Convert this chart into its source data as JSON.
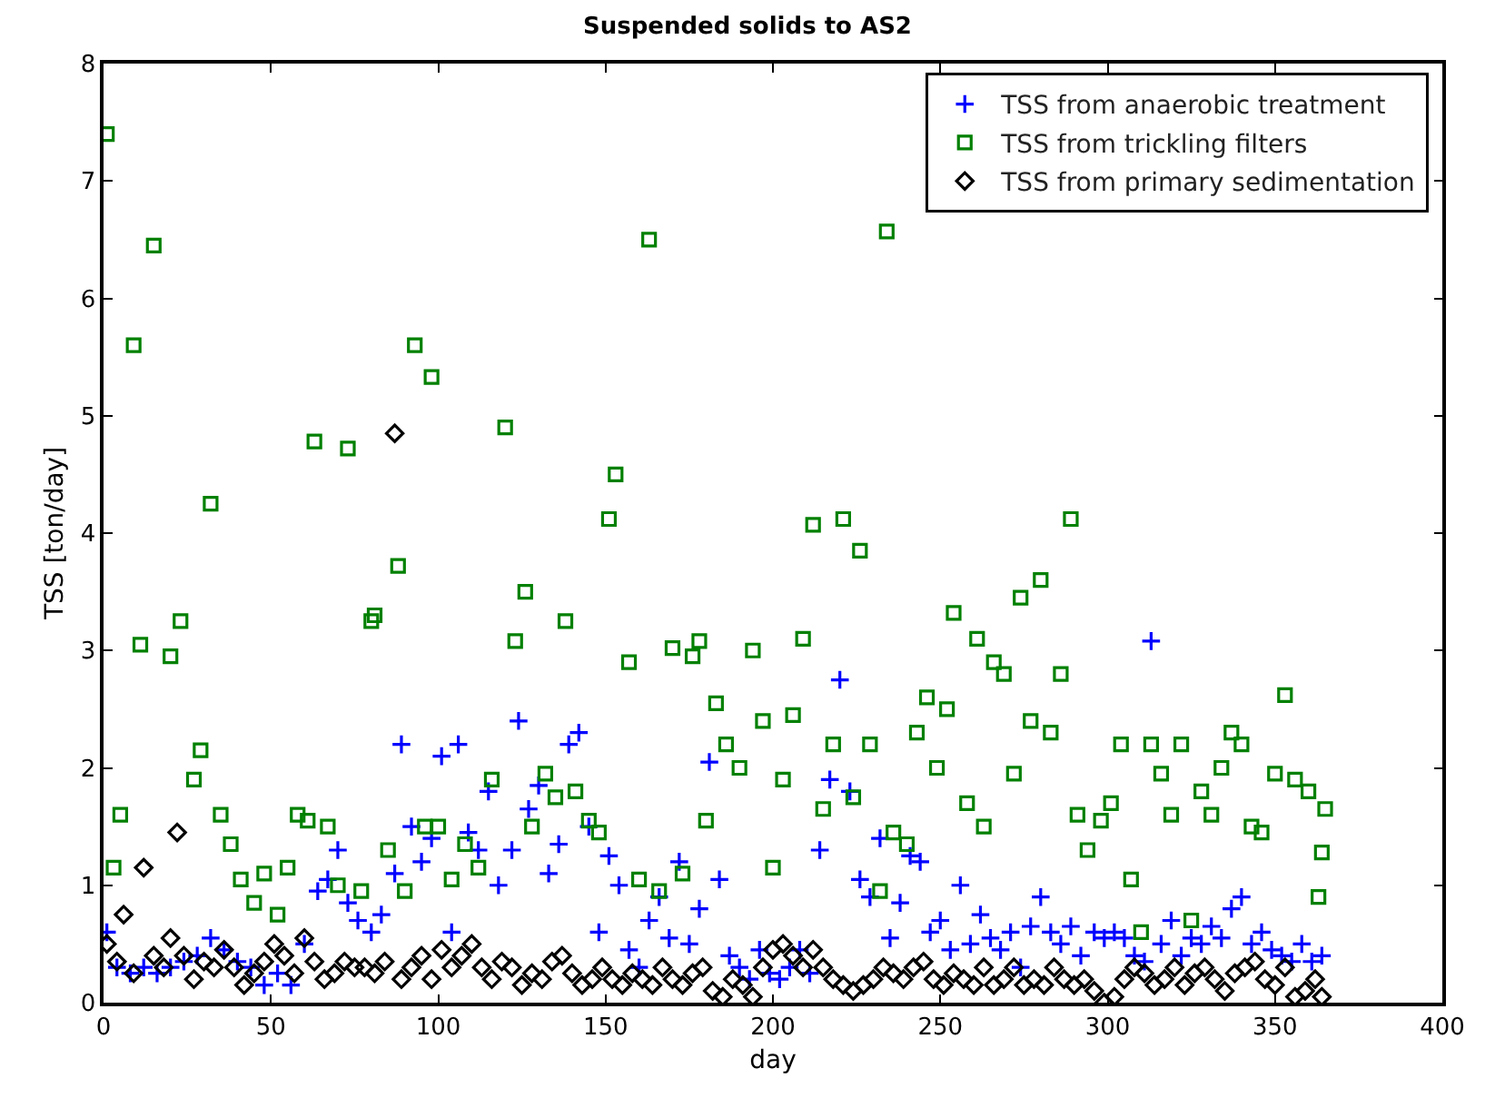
{
  "chart_data": {
    "type": "scatter",
    "title": "Suspended solids to AS2",
    "xlabel": "day",
    "ylabel": "TSS [ton/day]",
    "xlim": [
      0,
      400
    ],
    "xticks": [
      0,
      50,
      100,
      150,
      200,
      250,
      300,
      350,
      400
    ],
    "ylim": [
      0,
      8
    ],
    "yticks": [
      0,
      1,
      2,
      3,
      4,
      5,
      6,
      7,
      8
    ],
    "legend": "top right",
    "series": [
      {
        "name": "TSS from anaerobic treatment",
        "color": "#0000ff",
        "marker": "cross",
        "x": [
          1,
          4,
          8,
          12,
          16,
          20,
          24,
          28,
          32,
          36,
          40,
          44,
          48,
          52,
          56,
          60,
          64,
          67,
          70,
          73,
          76,
          80,
          83,
          87,
          89,
          92,
          95,
          98,
          101,
          104,
          106,
          109,
          112,
          115,
          118,
          122,
          124,
          127,
          130,
          133,
          136,
          139,
          142,
          145,
          148,
          151,
          154,
          157,
          160,
          163,
          166,
          169,
          172,
          175,
          178,
          181,
          184,
          187,
          190,
          193,
          196,
          199,
          202,
          205,
          208,
          211,
          214,
          217,
          220,
          223,
          226,
          229,
          232,
          235,
          238,
          241,
          244,
          247,
          250,
          253,
          256,
          259,
          262,
          265,
          268,
          271,
          274,
          277,
          280,
          283,
          286,
          289,
          292,
          296,
          299,
          302,
          305,
          308,
          311,
          313,
          316,
          319,
          322,
          325,
          328,
          331,
          334,
          337,
          340,
          343,
          346,
          349,
          352,
          355,
          358,
          361,
          364
        ],
        "values": [
          0.6,
          0.3,
          0.25,
          0.3,
          0.25,
          0.3,
          0.35,
          0.4,
          0.55,
          0.45,
          0.35,
          0.3,
          0.15,
          0.25,
          0.15,
          0.5,
          0.95,
          1.05,
          1.3,
          0.85,
          0.7,
          0.6,
          0.75,
          1.1,
          2.2,
          1.5,
          1.2,
          1.4,
          2.1,
          0.6,
          2.2,
          1.45,
          1.3,
          1.8,
          1.0,
          1.3,
          2.4,
          1.65,
          1.85,
          1.1,
          1.35,
          2.2,
          2.3,
          1.5,
          0.6,
          1.25,
          1.0,
          0.45,
          0.3,
          0.7,
          0.9,
          0.55,
          1.2,
          0.5,
          0.8,
          2.05,
          1.05,
          0.4,
          0.3,
          0.2,
          0.45,
          0.25,
          0.2,
          0.3,
          0.45,
          0.25,
          1.3,
          1.9,
          2.75,
          1.8,
          1.05,
          0.9,
          1.4,
          0.55,
          0.85,
          1.25,
          1.2,
          0.6,
          0.7,
          0.45,
          1.0,
          0.5,
          0.75,
          0.55,
          0.45,
          0.6,
          0.3,
          0.65,
          0.9,
          0.6,
          0.5,
          0.65,
          0.4,
          0.6,
          0.55,
          0.6,
          0.55,
          0.4,
          0.35,
          3.08,
          0.5,
          0.7,
          0.4,
          0.55,
          0.5,
          0.65,
          0.55,
          0.8,
          0.9,
          0.5,
          0.6,
          0.45,
          0.4,
          0.35,
          0.5,
          0.35,
          0.4
        ]
      },
      {
        "name": "TSS from trickling filters",
        "color": "#008000",
        "marker": "square",
        "x": [
          1,
          3,
          5,
          9,
          11,
          15,
          20,
          23,
          27,
          29,
          32,
          35,
          38,
          41,
          45,
          48,
          52,
          55,
          58,
          61,
          63,
          67,
          70,
          73,
          77,
          80,
          81,
          85,
          88,
          90,
          93,
          96,
          98,
          100,
          104,
          108,
          112,
          116,
          120,
          123,
          126,
          128,
          132,
          135,
          138,
          141,
          145,
          148,
          151,
          153,
          157,
          160,
          163,
          166,
          170,
          173,
          176,
          178,
          180,
          183,
          186,
          190,
          194,
          197,
          200,
          203,
          206,
          209,
          212,
          215,
          218,
          221,
          224,
          226,
          229,
          232,
          234,
          236,
          240,
          243,
          246,
          249,
          252,
          254,
          258,
          261,
          263,
          266,
          269,
          272,
          274,
          277,
          280,
          283,
          286,
          289,
          291,
          294,
          298,
          301,
          304,
          307,
          310,
          313,
          316,
          319,
          322,
          325,
          328,
          331,
          334,
          337,
          340,
          343,
          346,
          350,
          353,
          356,
          360,
          363,
          364,
          365
        ],
        "values": [
          7.4,
          1.15,
          1.6,
          5.6,
          3.05,
          6.45,
          2.95,
          3.25,
          1.9,
          2.15,
          4.25,
          1.6,
          1.35,
          1.05,
          0.85,
          1.1,
          0.75,
          1.15,
          1.6,
          1.55,
          4.78,
          1.5,
          1.0,
          4.72,
          0.95,
          3.25,
          3.3,
          1.3,
          3.72,
          0.95,
          5.6,
          1.5,
          5.33,
          1.5,
          1.05,
          1.35,
          1.15,
          1.9,
          4.9,
          3.08,
          3.5,
          1.5,
          1.95,
          1.75,
          3.25,
          1.8,
          1.55,
          1.45,
          4.12,
          4.5,
          2.9,
          1.05,
          6.5,
          0.95,
          3.02,
          1.1,
          2.95,
          3.08,
          1.55,
          2.55,
          2.2,
          2.0,
          3.0,
          2.4,
          1.15,
          1.9,
          2.45,
          3.1,
          4.07,
          1.65,
          2.2,
          4.12,
          1.75,
          3.85,
          2.2,
          0.95,
          6.57,
          1.45,
          1.35,
          2.3,
          2.6,
          2.0,
          2.5,
          3.32,
          1.7,
          3.1,
          1.5,
          2.9,
          2.8,
          1.95,
          3.45,
          2.4,
          3.6,
          2.3,
          2.8,
          4.12,
          1.6,
          1.3,
          1.55,
          1.7,
          2.2,
          1.05,
          0.6,
          2.2,
          1.95,
          1.6,
          2.2,
          0.7,
          1.8,
          1.6,
          2.0,
          2.3,
          2.2,
          1.5,
          1.45,
          1.95,
          2.62,
          1.9,
          1.8,
          0.9,
          1.28,
          1.65
        ]
      },
      {
        "name": "TSS from primary sedimentation",
        "color": "#000000",
        "marker": "diamond",
        "x": [
          1,
          4,
          6,
          9,
          12,
          15,
          18,
          20,
          22,
          24,
          27,
          30,
          33,
          36,
          39,
          42,
          45,
          48,
          51,
          54,
          57,
          60,
          63,
          66,
          69,
          72,
          75,
          78,
          81,
          84,
          87,
          89,
          92,
          95,
          98,
          101,
          104,
          107,
          110,
          113,
          116,
          119,
          122,
          125,
          128,
          131,
          134,
          137,
          140,
          143,
          146,
          149,
          152,
          155,
          158,
          161,
          164,
          167,
          170,
          173,
          176,
          179,
          182,
          185,
          188,
          191,
          194,
          197,
          200,
          203,
          206,
          209,
          212,
          215,
          218,
          221,
          224,
          227,
          230,
          233,
          236,
          239,
          242,
          245,
          248,
          251,
          254,
          257,
          260,
          263,
          266,
          269,
          272,
          275,
          278,
          281,
          284,
          287,
          290,
          293,
          296,
          299,
          302,
          305,
          308,
          311,
          314,
          317,
          320,
          323,
          326,
          329,
          332,
          335,
          338,
          341,
          344,
          347,
          350,
          353,
          356,
          359,
          362,
          364
        ],
        "values": [
          0.5,
          0.35,
          0.75,
          0.25,
          1.15,
          0.4,
          0.3,
          0.55,
          1.45,
          0.4,
          0.2,
          0.35,
          0.3,
          0.45,
          0.3,
          0.15,
          0.25,
          0.35,
          0.5,
          0.4,
          0.25,
          0.55,
          0.35,
          0.2,
          0.25,
          0.35,
          0.3,
          0.3,
          0.25,
          0.35,
          4.85,
          0.2,
          0.3,
          0.4,
          0.2,
          0.45,
          0.3,
          0.4,
          0.5,
          0.3,
          0.2,
          0.35,
          0.3,
          0.15,
          0.25,
          0.2,
          0.35,
          0.4,
          0.25,
          0.15,
          0.2,
          0.3,
          0.2,
          0.15,
          0.25,
          0.2,
          0.15,
          0.3,
          0.2,
          0.15,
          0.25,
          0.3,
          0.1,
          0.05,
          0.2,
          0.15,
          0.05,
          0.3,
          0.45,
          0.5,
          0.4,
          0.3,
          0.45,
          0.3,
          0.2,
          0.15,
          0.1,
          0.15,
          0.2,
          0.3,
          0.25,
          0.2,
          0.3,
          0.35,
          0.2,
          0.15,
          0.25,
          0.2,
          0.15,
          0.3,
          0.15,
          0.2,
          0.3,
          0.15,
          0.2,
          0.15,
          0.3,
          0.2,
          0.15,
          0.2,
          0.1,
          0.0,
          0.05,
          0.2,
          0.3,
          0.25,
          0.15,
          0.2,
          0.3,
          0.15,
          0.25,
          0.3,
          0.2,
          0.1,
          0.25,
          0.3,
          0.35,
          0.2,
          0.15,
          0.3,
          0.05,
          0.1,
          0.2,
          0.05
        ]
      }
    ]
  }
}
